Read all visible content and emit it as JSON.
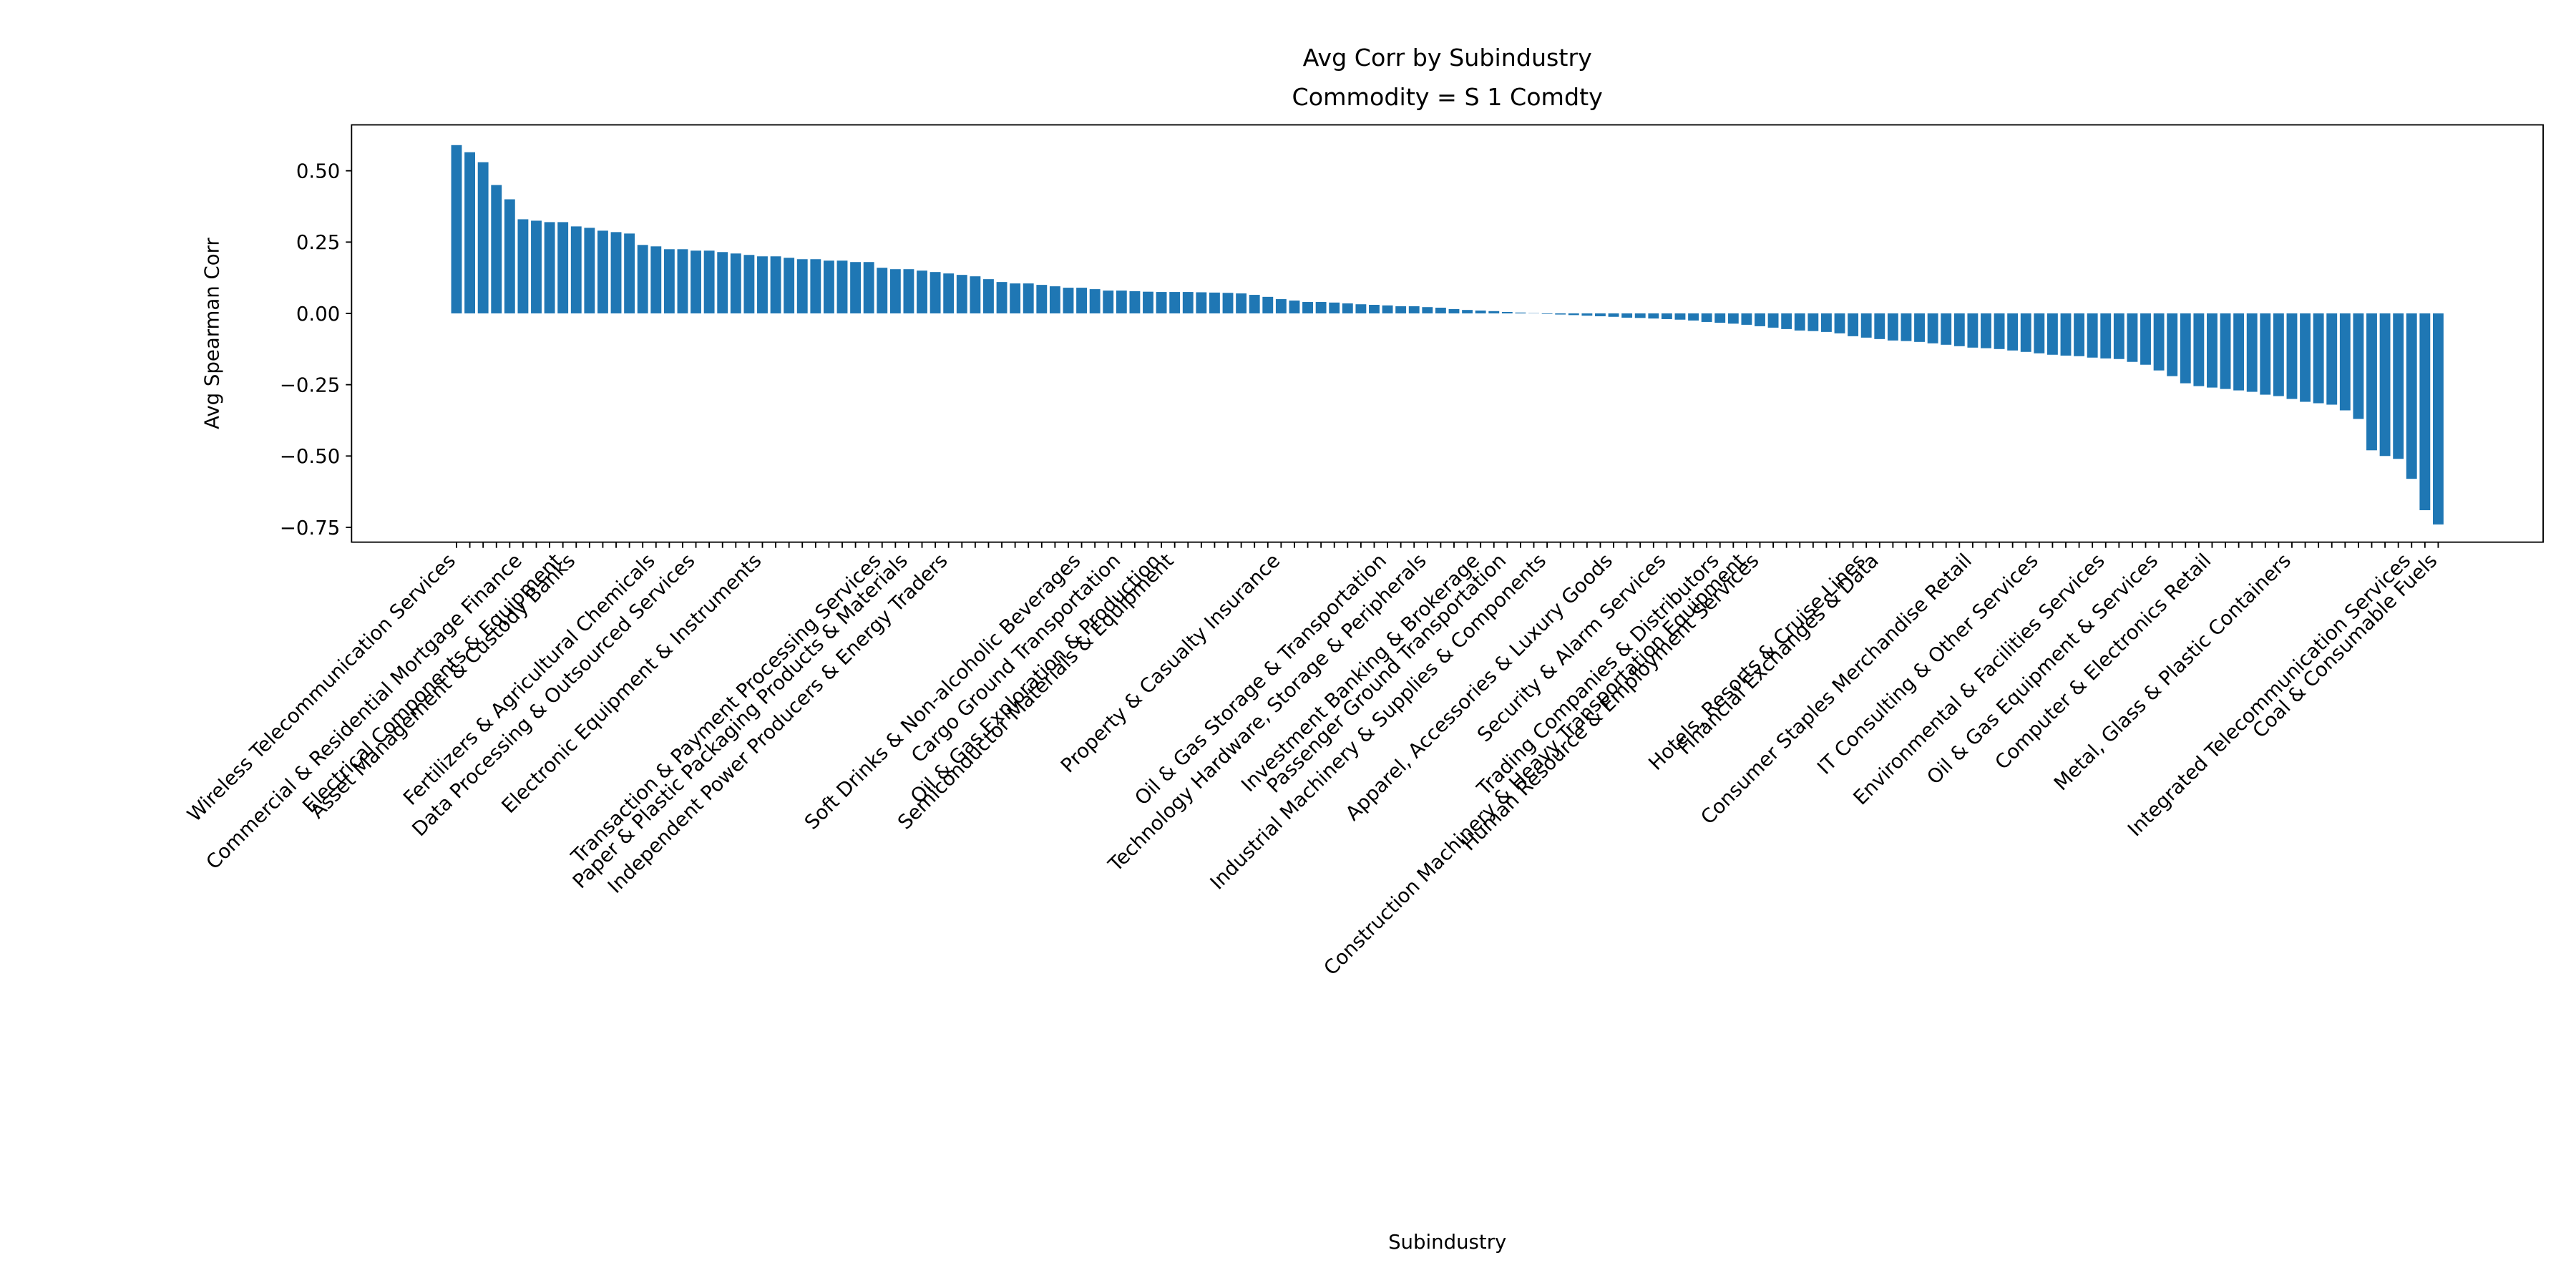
{
  "chart_data": {
    "type": "bar",
    "title": "Avg Corr by Subindustry",
    "subtitle": "Commodity = S 1 Comdty",
    "xlabel": "Subindustry",
    "ylabel": "Avg Spearman Corr",
    "color": "#1f77b4",
    "categories": [
      "Wireless Telecommunication Services",
      null,
      null,
      null,
      null,
      "Commercial & Residential Mortgage Finance",
      null,
      null,
      "Electrical Components & Equipment",
      "Asset Management & Custody Banks",
      null,
      null,
      null,
      null,
      null,
      "Fertilizers & Agricultural Chemicals",
      null,
      null,
      "Data Processing & Outsourced Services",
      null,
      null,
      null,
      null,
      "Electronic Equipment & Instruments",
      null,
      null,
      null,
      null,
      null,
      null,
      null,
      null,
      "Transaction & Payment Processing Services",
      null,
      "Paper & Plastic Packaging Products & Materials",
      null,
      null,
      "Independent Power Producers & Energy Traders",
      null,
      null,
      null,
      null,
      null,
      null,
      null,
      null,
      null,
      "Soft Drinks & Non-alcoholic Beverages",
      null,
      null,
      "Cargo Ground Transportation",
      null,
      null,
      "Oil & Gas Exploration & Production",
      "Semiconductor Materials & Equipment",
      null,
      null,
      null,
      null,
      null,
      null,
      null,
      "Property & Casualty Insurance",
      null,
      null,
      null,
      null,
      null,
      null,
      null,
      "Oil & Gas Storage & Transportation",
      null,
      null,
      "Technology Hardware, Storage & Peripherals",
      null,
      null,
      null,
      "Investment Banking & Brokerage",
      null,
      "Passenger Ground Transportation",
      null,
      null,
      "Industrial Machinery & Supplies & Components",
      null,
      null,
      null,
      null,
      "Apparel, Accessories & Luxury Goods",
      null,
      null,
      null,
      "Security & Alarm Services",
      null,
      null,
      null,
      "Trading Companies & Distributors",
      null,
      "Construction Machinery & Heavy Transportation Equipment",
      "Human Resource & Employment Services",
      null,
      null,
      null,
      null,
      null,
      null,
      null,
      "Hotels, Resorts & Cruise Lines",
      "Financial Exchanges & Data",
      null,
      null,
      null,
      null,
      null,
      null,
      "Consumer Staples Merchandise Retail",
      null,
      null,
      null,
      null,
      "IT Consulting & Other Services",
      null,
      null,
      null,
      null,
      "Environmental & Facilities Services",
      null,
      null,
      null,
      "Oil & Gas Equipment & Services",
      null,
      null,
      null,
      "Computer & Electronics Retail",
      null,
      null,
      null,
      null,
      null,
      "Metal, Glass & Plastic Containers",
      null,
      null,
      null,
      null,
      null,
      null,
      null,
      null,
      "Integrated Telecommunication Services",
      null,
      "Coal & Consumable Fuels"
    ],
    "values": [
      0.59,
      0.565,
      0.53,
      0.45,
      0.4,
      0.33,
      0.325,
      0.32,
      0.32,
      0.305,
      0.3,
      0.29,
      0.285,
      0.28,
      0.24,
      0.235,
      0.225,
      0.225,
      0.22,
      0.22,
      0.215,
      0.21,
      0.205,
      0.2,
      0.2,
      0.195,
      0.19,
      0.19,
      0.185,
      0.185,
      0.18,
      0.18,
      0.16,
      0.155,
      0.155,
      0.15,
      0.145,
      0.14,
      0.135,
      0.13,
      0.12,
      0.11,
      0.105,
      0.105,
      0.1,
      0.095,
      0.09,
      0.09,
      0.085,
      0.08,
      0.08,
      0.078,
      0.076,
      0.075,
      0.075,
      0.075,
      0.074,
      0.073,
      0.072,
      0.07,
      0.065,
      0.058,
      0.05,
      0.045,
      0.04,
      0.04,
      0.038,
      0.035,
      0.032,
      0.03,
      0.028,
      0.025,
      0.025,
      0.022,
      0.02,
      0.015,
      0.012,
      0.01,
      0.008,
      0.005,
      0.003,
      0.001,
      -0.002,
      -0.004,
      -0.006,
      -0.008,
      -0.01,
      -0.012,
      -0.015,
      -0.016,
      -0.018,
      -0.02,
      -0.022,
      -0.025,
      -0.03,
      -0.033,
      -0.036,
      -0.04,
      -0.045,
      -0.05,
      -0.055,
      -0.06,
      -0.062,
      -0.065,
      -0.07,
      -0.08,
      -0.085,
      -0.09,
      -0.095,
      -0.097,
      -0.1,
      -0.105,
      -0.11,
      -0.115,
      -0.12,
      -0.122,
      -0.125,
      -0.13,
      -0.135,
      -0.14,
      -0.145,
      -0.148,
      -0.15,
      -0.155,
      -0.158,
      -0.16,
      -0.17,
      -0.18,
      -0.2,
      -0.22,
      -0.245,
      -0.255,
      -0.26,
      -0.265,
      -0.27,
      -0.275,
      -0.285,
      -0.29,
      -0.3,
      -0.31,
      -0.315,
      -0.32,
      -0.34,
      -0.37,
      -0.48,
      -0.5,
      -0.51,
      -0.58,
      -0.69,
      -0.74
    ],
    "ylim": [
      -0.802,
      0.661
    ],
    "yticks": [
      {
        "value": 0.5,
        "label": "0.50"
      },
      {
        "value": 0.25,
        "label": "0.25"
      },
      {
        "value": 0,
        "label": "0.00"
      },
      {
        "value": -0.25,
        "label": "−0.25"
      },
      {
        "value": -0.5,
        "label": "−0.50"
      },
      {
        "value": -0.75,
        "label": "−0.75"
      }
    ],
    "grid": false
  }
}
